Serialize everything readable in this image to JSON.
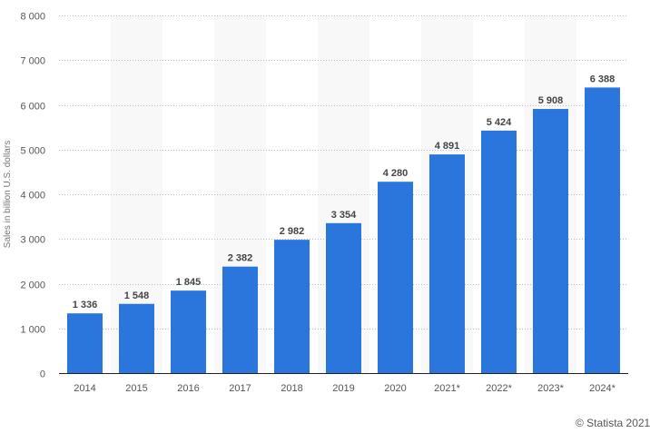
{
  "chart_data": {
    "type": "bar",
    "categories": [
      "2014",
      "2015",
      "2016",
      "2017",
      "2018",
      "2019",
      "2020",
      "2021*",
      "2022*",
      "2023*",
      "2024*"
    ],
    "values": [
      1336,
      1548,
      1845,
      2382,
      2982,
      3354,
      4280,
      4891,
      5424,
      5908,
      6388
    ],
    "value_labels": [
      "1 336",
      "1 548",
      "1 845",
      "2 382",
      "2 982",
      "3 354",
      "4 280",
      "4 891",
      "5 424",
      "5 908",
      "6 388"
    ],
    "y_ticks": [
      0,
      1000,
      2000,
      3000,
      4000,
      5000,
      6000,
      7000,
      8000
    ],
    "y_tick_labels": [
      "0",
      "1 000",
      "2 000",
      "3 000",
      "4 000",
      "5 000",
      "6 000",
      "7 000",
      "8 000"
    ],
    "ylim": [
      0,
      8000
    ],
    "ylabel": "Sales in billion U.S. dollars",
    "xlabel": "",
    "title": "",
    "grid": true,
    "bar_color": "#2a76dd"
  },
  "credit": "© Statista 2021"
}
